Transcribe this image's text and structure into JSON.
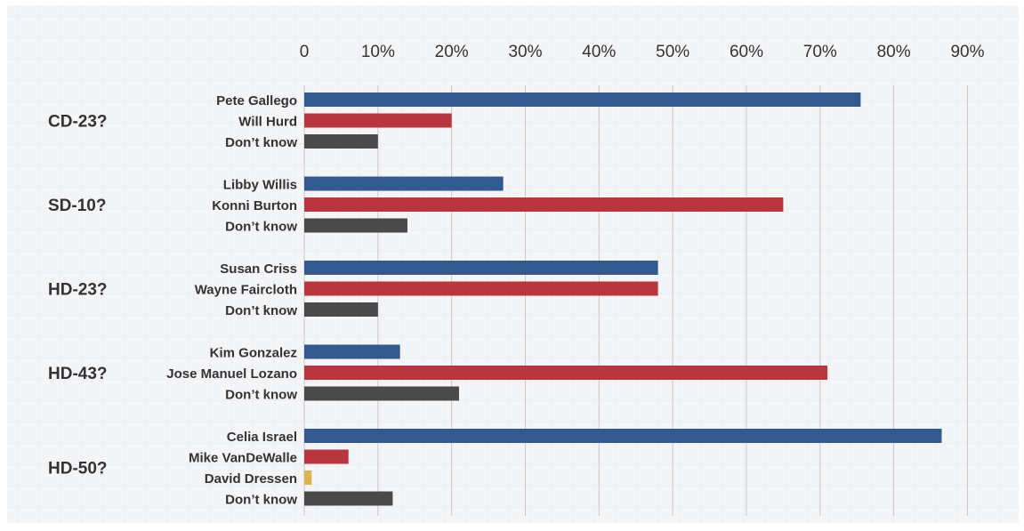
{
  "chart_data": {
    "type": "bar",
    "orientation": "horizontal",
    "title": "",
    "xlabel": "",
    "ylabel": "",
    "xlim": [
      0,
      90
    ],
    "x_ticks": [
      0,
      10,
      20,
      30,
      40,
      50,
      60,
      70,
      80,
      90
    ],
    "x_tick_labels": [
      "0",
      "10%",
      "20%",
      "30%",
      "40%",
      "50%",
      "60%",
      "70%",
      "80%",
      "90%"
    ],
    "x_axis_position": "top",
    "grid": true,
    "legend": "none",
    "colors": {
      "blue": "#34598f",
      "red": "#b9363f",
      "gray": "#4a4a4a",
      "yellow": "#dcb44f",
      "background": "#f4f5f7",
      "gridline": "#c8c8c8",
      "text": "#333333"
    },
    "groups": [
      {
        "label": "CD-23?",
        "bars": [
          {
            "label": "Pete Gallego",
            "value": 75.5,
            "color": "blue"
          },
          {
            "label": "Will Hurd",
            "value": 20,
            "color": "red"
          },
          {
            "label": "Don’t know",
            "value": 10,
            "color": "gray"
          }
        ]
      },
      {
        "label": "SD-10?",
        "bars": [
          {
            "label": "Libby Willis",
            "value": 27,
            "color": "blue"
          },
          {
            "label": "Konni Burton",
            "value": 65,
            "color": "red"
          },
          {
            "label": "Don’t know",
            "value": 14,
            "color": "gray"
          }
        ]
      },
      {
        "label": "HD-23?",
        "bars": [
          {
            "label": "Susan Criss",
            "value": 48,
            "color": "blue"
          },
          {
            "label": "Wayne Faircloth",
            "value": 48,
            "color": "red"
          },
          {
            "label": "Don’t know",
            "value": 10,
            "color": "gray"
          }
        ]
      },
      {
        "label": "HD-43?",
        "bars": [
          {
            "label": "Kim Gonzalez",
            "value": 13,
            "color": "blue"
          },
          {
            "label": "Jose Manuel Lozano",
            "value": 71,
            "color": "red"
          },
          {
            "label": "Don’t know",
            "value": 21,
            "color": "gray"
          }
        ]
      },
      {
        "label": "HD-50?",
        "bars": [
          {
            "label": "Celia Israel",
            "value": 86.5,
            "color": "blue"
          },
          {
            "label": "Mike VanDeWalle",
            "value": 6,
            "color": "red"
          },
          {
            "label": "David Dressen",
            "value": 1,
            "color": "yellow"
          },
          {
            "label": "Don’t know",
            "value": 12,
            "color": "gray"
          }
        ]
      }
    ]
  }
}
